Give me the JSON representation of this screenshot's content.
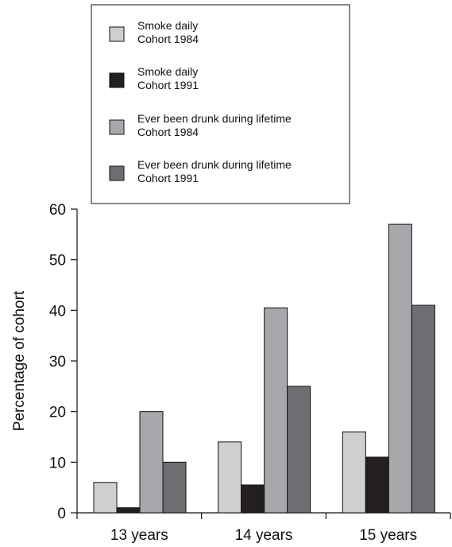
{
  "chart_data": {
    "type": "bar",
    "title": "",
    "xlabel": "",
    "ylabel": "Percentage of cohort",
    "ylim": [
      0,
      60
    ],
    "yticks": [
      0,
      10,
      20,
      30,
      40,
      50,
      60
    ],
    "categories": [
      "13 years",
      "14 years",
      "15 years"
    ],
    "series": [
      {
        "name_line1": "Smoke daily",
        "name_line2": "Cohort 1984",
        "color": "#cfcfd1",
        "values": [
          6,
          14,
          16
        ]
      },
      {
        "name_line1": "Smoke daily",
        "name_line2": "Cohort 1991",
        "color": "#231f20",
        "values": [
          1,
          5.5,
          11
        ]
      },
      {
        "name_line1": "Ever been drunk during lifetime",
        "name_line2": "Cohort 1984",
        "color": "#a7a8ab",
        "values": [
          20,
          40.5,
          57
        ]
      },
      {
        "name_line1": "Ever been drunk during lifetime",
        "name_line2": "Cohort 1991",
        "color": "#6d6e71",
        "values": [
          10,
          25,
          41
        ]
      }
    ],
    "grid": false,
    "legend_position": "top"
  }
}
